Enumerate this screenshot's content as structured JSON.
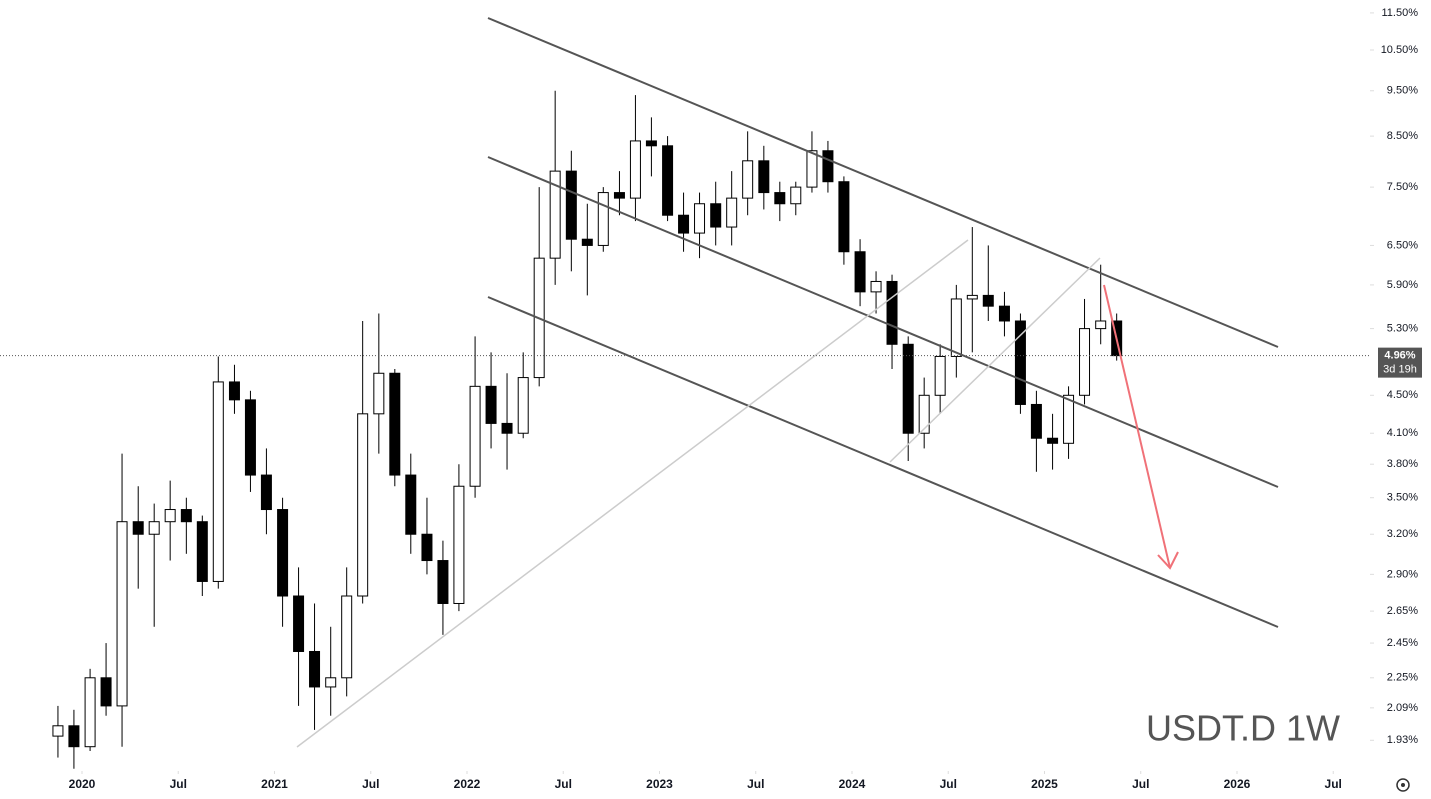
{
  "chart_data": {
    "type": "candlestick",
    "title": "USDT.D 1W",
    "log_scale": true,
    "grid": false,
    "x": [
      2019.875,
      2019.958,
      2020.042,
      2020.125,
      2020.208,
      2020.292,
      2020.375,
      2020.458,
      2020.542,
      2020.625,
      2020.708,
      2020.792,
      2020.875,
      2020.958,
      2021.042,
      2021.125,
      2021.208,
      2021.292,
      2021.375,
      2021.458,
      2021.542,
      2021.625,
      2021.708,
      2021.792,
      2021.875,
      2021.958,
      2022.042,
      2022.125,
      2022.208,
      2022.292,
      2022.375,
      2022.458,
      2022.542,
      2022.625,
      2022.708,
      2022.792,
      2022.875,
      2022.958,
      2023.042,
      2023.125,
      2023.208,
      2023.292,
      2023.375,
      2023.458,
      2023.542,
      2023.625,
      2023.708,
      2023.792,
      2023.875,
      2023.958,
      2024.042,
      2024.125,
      2024.208,
      2024.292,
      2024.375,
      2024.458,
      2024.542,
      2024.625,
      2024.708,
      2024.792,
      2024.875,
      2024.958,
      2025.042,
      2025.125,
      2025.208,
      2025.292,
      2025.375
    ],
    "open": [
      1.95,
      2.0,
      1.9,
      2.25,
      2.1,
      3.3,
      3.2,
      3.3,
      3.4,
      3.3,
      2.85,
      4.65,
      4.45,
      3.7,
      3.4,
      2.75,
      2.4,
      2.2,
      2.25,
      2.75,
      4.3,
      4.75,
      3.7,
      3.2,
      3.0,
      2.7,
      3.6,
      4.6,
      4.2,
      4.1,
      4.7,
      6.3,
      7.8,
      6.6,
      6.5,
      7.4,
      7.3,
      8.4,
      8.3,
      7.0,
      6.7,
      7.2,
      6.8,
      7.3,
      8.0,
      7.4,
      7.2,
      7.5,
      8.2,
      7.6,
      6.4,
      5.8,
      5.95,
      5.1,
      4.1,
      4.5,
      4.95,
      5.7,
      5.75,
      5.6,
      5.4,
      4.4,
      4.05,
      4.0,
      4.5,
      5.3,
      5.4
    ],
    "high": [
      2.1,
      2.08,
      2.3,
      2.45,
      3.9,
      3.6,
      3.45,
      3.65,
      3.5,
      3.35,
      4.95,
      4.85,
      4.55,
      3.95,
      3.5,
      2.95,
      2.7,
      2.55,
      2.95,
      5.4,
      5.5,
      4.8,
      3.9,
      3.5,
      3.15,
      3.8,
      5.2,
      5.0,
      4.75,
      5.0,
      7.5,
      9.5,
      8.2,
      7.2,
      7.5,
      7.8,
      9.4,
      8.9,
      8.5,
      7.4,
      7.4,
      7.6,
      7.8,
      8.6,
      8.3,
      7.6,
      7.6,
      8.6,
      8.4,
      7.7,
      6.6,
      6.1,
      6.05,
      5.2,
      4.7,
      5.1,
      5.9,
      6.8,
      6.5,
      5.8,
      5.5,
      4.55,
      4.3,
      4.6,
      5.7,
      6.2,
      5.5
    ],
    "low": [
      1.85,
      1.8,
      1.88,
      2.05,
      1.9,
      2.8,
      2.55,
      3.0,
      3.05,
      2.75,
      2.8,
      4.3,
      3.55,
      3.2,
      2.55,
      2.1,
      1.98,
      2.05,
      2.15,
      2.7,
      3.9,
      3.6,
      3.05,
      2.9,
      2.5,
      2.65,
      3.5,
      3.95,
      3.75,
      4.05,
      4.6,
      5.9,
      6.1,
      5.75,
      6.4,
      7.0,
      6.9,
      7.7,
      6.9,
      6.4,
      6.3,
      6.5,
      6.5,
      7.0,
      7.1,
      6.9,
      7.0,
      7.4,
      7.4,
      6.2,
      5.6,
      5.5,
      4.8,
      3.83,
      3.95,
      4.3,
      4.7,
      5.0,
      5.4,
      5.2,
      4.3,
      3.73,
      3.75,
      3.85,
      4.4,
      5.1,
      4.9
    ],
    "close": [
      2.0,
      1.9,
      2.25,
      2.1,
      3.3,
      3.2,
      3.3,
      3.4,
      3.3,
      2.85,
      4.65,
      4.45,
      3.7,
      3.4,
      2.75,
      2.4,
      2.2,
      2.25,
      2.75,
      4.3,
      4.75,
      3.7,
      3.2,
      3.0,
      2.7,
      3.6,
      4.6,
      4.2,
      4.1,
      4.7,
      6.3,
      7.8,
      6.6,
      6.5,
      7.4,
      7.3,
      8.4,
      8.3,
      7.0,
      6.7,
      7.2,
      6.8,
      7.3,
      8.0,
      7.4,
      7.2,
      7.5,
      8.2,
      7.6,
      6.4,
      5.8,
      5.95,
      5.1,
      4.1,
      4.5,
      4.95,
      5.7,
      5.75,
      5.6,
      5.4,
      4.4,
      4.05,
      4.0,
      4.5,
      5.3,
      5.4,
      4.96
    ],
    "up_color": "#ffffff",
    "down_color": "#000000",
    "wick_color": "#000000",
    "last_value": {
      "value": 4.96,
      "label": "4.96%"
    },
    "countdown": "3d 19h",
    "xlim": [
      2019.574,
      2026.691
    ],
    "xticks": [
      2020,
      {
        "value": 2020.5,
        "label": "Jul"
      },
      2021,
      {
        "value": 2021.5,
        "label": "Jul"
      },
      2022,
      {
        "value": 2022.5,
        "label": "Jul"
      },
      2023,
      {
        "value": 2023.5,
        "label": "Jul"
      },
      2024,
      {
        "value": 2024.5,
        "label": "Jul"
      },
      2025,
      {
        "value": 2025.5,
        "label": "Jul"
      },
      2026,
      {
        "value": 2026.5,
        "label": "Jul"
      }
    ],
    "ylim": [
      1.79,
      11.87
    ],
    "yticks": [
      {
        "value": 11.5,
        "label": "11.50%"
      },
      {
        "value": 10.5,
        "label": "10.50%"
      },
      {
        "value": 9.5,
        "label": "9.50%"
      },
      {
        "value": 8.5,
        "label": "8.50%"
      },
      {
        "value": 7.5,
        "label": "7.50%"
      },
      {
        "value": 6.5,
        "label": "6.50%"
      },
      {
        "value": 5.9,
        "label": "5.90%"
      },
      {
        "value": 5.3,
        "label": "5.30%"
      },
      {
        "value": 4.5,
        "label": "4.50%"
      },
      {
        "value": 4.1,
        "label": "4.10%"
      },
      {
        "value": 3.8,
        "label": "3.80%"
      },
      {
        "value": 3.5,
        "label": "3.50%"
      },
      {
        "value": 3.2,
        "label": "3.20%"
      },
      {
        "value": 2.9,
        "label": "2.90%"
      },
      {
        "value": 2.65,
        "label": "2.65%"
      },
      {
        "value": 2.45,
        "label": "2.45%"
      },
      {
        "value": 2.25,
        "label": "2.25%"
      },
      {
        "value": 2.09,
        "label": "2.09%"
      },
      {
        "value": 1.93,
        "label": "1.93%"
      }
    ]
  }
}
